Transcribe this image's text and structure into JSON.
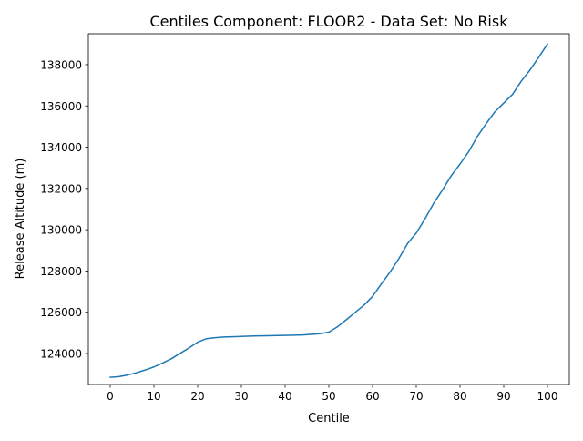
{
  "chart_data": {
    "type": "line",
    "title": "Centiles Component: FLOOR2 - Data Set: No Risk",
    "xlabel": "Centile",
    "ylabel": "Release Altitude (m)",
    "xlim": [
      -5,
      105
    ],
    "ylim": [
      122500,
      139500
    ],
    "xticks": [
      0,
      10,
      20,
      30,
      40,
      50,
      60,
      70,
      80,
      90,
      100
    ],
    "yticks": [
      124000,
      126000,
      128000,
      130000,
      132000,
      134000,
      136000,
      138000
    ],
    "grid": false,
    "series": [
      {
        "color": "#1f77b4",
        "x": [
          0,
          2,
          4,
          6,
          8,
          10,
          12,
          14,
          16,
          18,
          20,
          22,
          24,
          26,
          28,
          30,
          32,
          34,
          36,
          38,
          40,
          42,
          44,
          46,
          48,
          50,
          52,
          54,
          56,
          58,
          60,
          62,
          64,
          66,
          68,
          70,
          72,
          74,
          76,
          78,
          80,
          82,
          84,
          86,
          88,
          90,
          92,
          94,
          96,
          98,
          100
        ],
        "y": [
          122850,
          122880,
          122960,
          123070,
          123200,
          123350,
          123540,
          123750,
          124010,
          124270,
          124550,
          124720,
          124770,
          124800,
          124815,
          124830,
          124845,
          124855,
          124865,
          124875,
          124880,
          124890,
          124900,
          124930,
          124960,
          125040,
          125300,
          125640,
          125990,
          126340,
          126770,
          127370,
          127950,
          128600,
          129330,
          129840,
          130530,
          131290,
          131930,
          132620,
          133180,
          133790,
          134530,
          135150,
          135720,
          136140,
          136560,
          137200,
          137740,
          138360,
          139000
        ]
      }
    ]
  }
}
